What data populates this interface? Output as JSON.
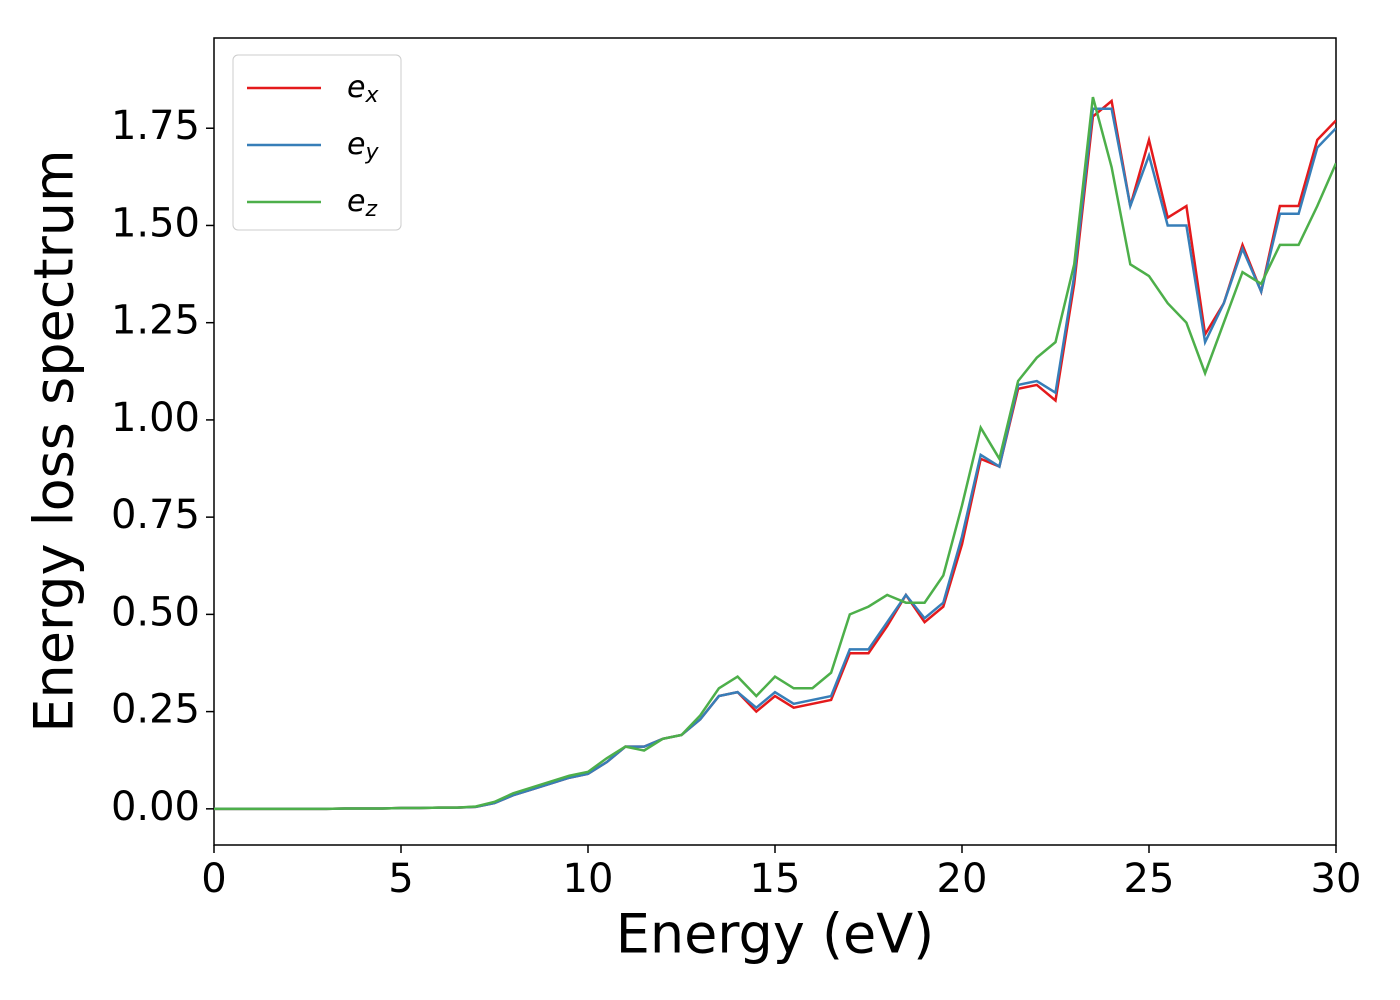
{
  "chart_data": {
    "type": "line",
    "x_label": "Energy (eV)",
    "y_label": "Energy loss spectrum",
    "x": [
      0,
      0.5,
      1,
      1.5,
      2,
      2.5,
      3,
      3.5,
      4,
      4.5,
      5,
      5.5,
      6,
      6.5,
      7,
      7.5,
      8,
      8.5,
      9,
      9.5,
      10,
      10.5,
      11,
      11.5,
      12,
      12.5,
      13,
      13.5,
      14,
      14.5,
      15,
      15.5,
      16,
      16.5,
      17,
      17.5,
      18,
      18.5,
      19,
      19.5,
      20,
      20.5,
      21,
      21.5,
      22,
      22.5,
      23,
      23.5,
      24,
      24.5,
      25,
      25.5,
      26,
      26.5,
      27,
      27.5,
      28,
      28.5,
      29,
      29.5,
      30
    ],
    "series": [
      {
        "name": "ex",
        "color": "#e41a1c",
        "values": [
          0,
          0,
          0,
          0,
          0,
          0,
          0,
          0.001,
          0.001,
          0.001,
          0.002,
          0.002,
          0.003,
          0.003,
          0.005,
          0.015,
          0.035,
          0.05,
          0.065,
          0.08,
          0.09,
          0.12,
          0.16,
          0.16,
          0.18,
          0.19,
          0.23,
          0.29,
          0.3,
          0.25,
          0.29,
          0.26,
          0.27,
          0.28,
          0.4,
          0.4,
          0.47,
          0.55,
          0.48,
          0.52,
          0.68,
          0.9,
          0.88,
          1.08,
          1.09,
          1.05,
          1.35,
          1.78,
          1.82,
          1.55,
          1.72,
          1.52,
          1.55,
          1.22,
          1.3,
          1.45,
          1.33,
          1.55,
          1.55,
          1.72,
          1.77
        ]
      },
      {
        "name": "ey",
        "color": "#377eb8",
        "values": [
          0,
          0,
          0,
          0,
          0,
          0,
          0,
          0.001,
          0.001,
          0.001,
          0.002,
          0.002,
          0.003,
          0.003,
          0.005,
          0.015,
          0.035,
          0.05,
          0.065,
          0.08,
          0.09,
          0.12,
          0.16,
          0.16,
          0.18,
          0.19,
          0.23,
          0.29,
          0.3,
          0.26,
          0.3,
          0.27,
          0.28,
          0.29,
          0.41,
          0.41,
          0.48,
          0.55,
          0.49,
          0.53,
          0.7,
          0.91,
          0.88,
          1.09,
          1.1,
          1.07,
          1.37,
          1.8,
          1.8,
          1.55,
          1.68,
          1.5,
          1.5,
          1.2,
          1.3,
          1.44,
          1.33,
          1.53,
          1.53,
          1.7,
          1.75
        ]
      },
      {
        "name": "ez",
        "color": "#4daf4a",
        "values": [
          0,
          0,
          0,
          0,
          0,
          0,
          0,
          0.001,
          0.001,
          0.001,
          0.002,
          0.002,
          0.003,
          0.003,
          0.006,
          0.018,
          0.04,
          0.055,
          0.07,
          0.085,
          0.095,
          0.13,
          0.16,
          0.15,
          0.18,
          0.19,
          0.24,
          0.31,
          0.34,
          0.29,
          0.34,
          0.31,
          0.31,
          0.35,
          0.5,
          0.52,
          0.55,
          0.53,
          0.53,
          0.6,
          0.78,
          0.98,
          0.9,
          1.1,
          1.16,
          1.2,
          1.4,
          1.83,
          1.65,
          1.4,
          1.37,
          1.3,
          1.25,
          1.12,
          1.25,
          1.38,
          1.35,
          1.45,
          1.45,
          1.55,
          1.66
        ]
      }
    ],
    "xlim": [
      0,
      30
    ],
    "xticks": [
      0,
      5,
      10,
      15,
      20,
      25,
      30
    ],
    "ylim": [
      -0.093,
      1.982
    ],
    "yticks": [
      {
        "value": 0,
        "label": "0.00"
      },
      {
        "value": 0.25,
        "label": "0.25"
      },
      {
        "value": 0.5,
        "label": "0.50"
      },
      {
        "value": 0.75,
        "label": "0.75"
      },
      {
        "value": 1,
        "label": "1.00"
      },
      {
        "value": 1.25,
        "label": "1.25"
      },
      {
        "value": 1.5,
        "label": "1.50"
      },
      {
        "value": 1.75,
        "label": "1.75"
      }
    ],
    "legend": "upper left"
  }
}
